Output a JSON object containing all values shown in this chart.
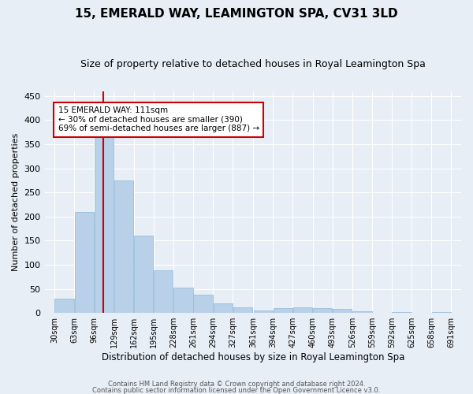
{
  "title": "15, EMERALD WAY, LEAMINGTON SPA, CV31 3LD",
  "subtitle": "Size of property relative to detached houses in Royal Leamington Spa",
  "xlabel": "Distribution of detached houses by size in Royal Leamington Spa",
  "ylabel": "Number of detached properties",
  "bar_color": "#b8d0e8",
  "bar_edge_color": "#90b8d8",
  "annotation_title": "15 EMERALD WAY: 111sqm",
  "annotation_line1": "← 30% of detached houses are smaller (390)",
  "annotation_line2": "69% of semi-detached houses are larger (887) →",
  "footer_line1": "Contains HM Land Registry data © Crown copyright and database right 2024.",
  "footer_line2": "Contains public sector information licensed under the Open Government Licence v3.0.",
  "bin_edges": [
    30,
    63,
    96,
    129,
    162,
    195,
    228,
    261,
    294,
    327,
    361,
    394,
    427,
    460,
    493,
    526,
    559,
    592,
    625,
    658,
    691
  ],
  "bin_labels": [
    "30sqm",
    "63sqm",
    "96sqm",
    "129sqm",
    "162sqm",
    "195sqm",
    "228sqm",
    "261sqm",
    "294sqm",
    "327sqm",
    "361sqm",
    "394sqm",
    "427sqm",
    "460sqm",
    "493sqm",
    "526sqm",
    "559sqm",
    "592sqm",
    "625sqm",
    "658sqm",
    "691sqm"
  ],
  "counts": [
    30,
    210,
    378,
    275,
    160,
    88,
    52,
    38,
    20,
    12,
    6,
    10,
    12,
    10,
    8,
    4,
    0,
    2,
    0,
    2
  ],
  "ylim": [
    0,
    460
  ],
  "yticks": [
    0,
    50,
    100,
    150,
    200,
    250,
    300,
    350,
    400,
    450
  ],
  "background_color": "#e8eef5",
  "grid_color": "#ffffff",
  "red_line_color": "#cc0000",
  "annotation_box_edge": "#cc0000",
  "property_sqm": 111
}
